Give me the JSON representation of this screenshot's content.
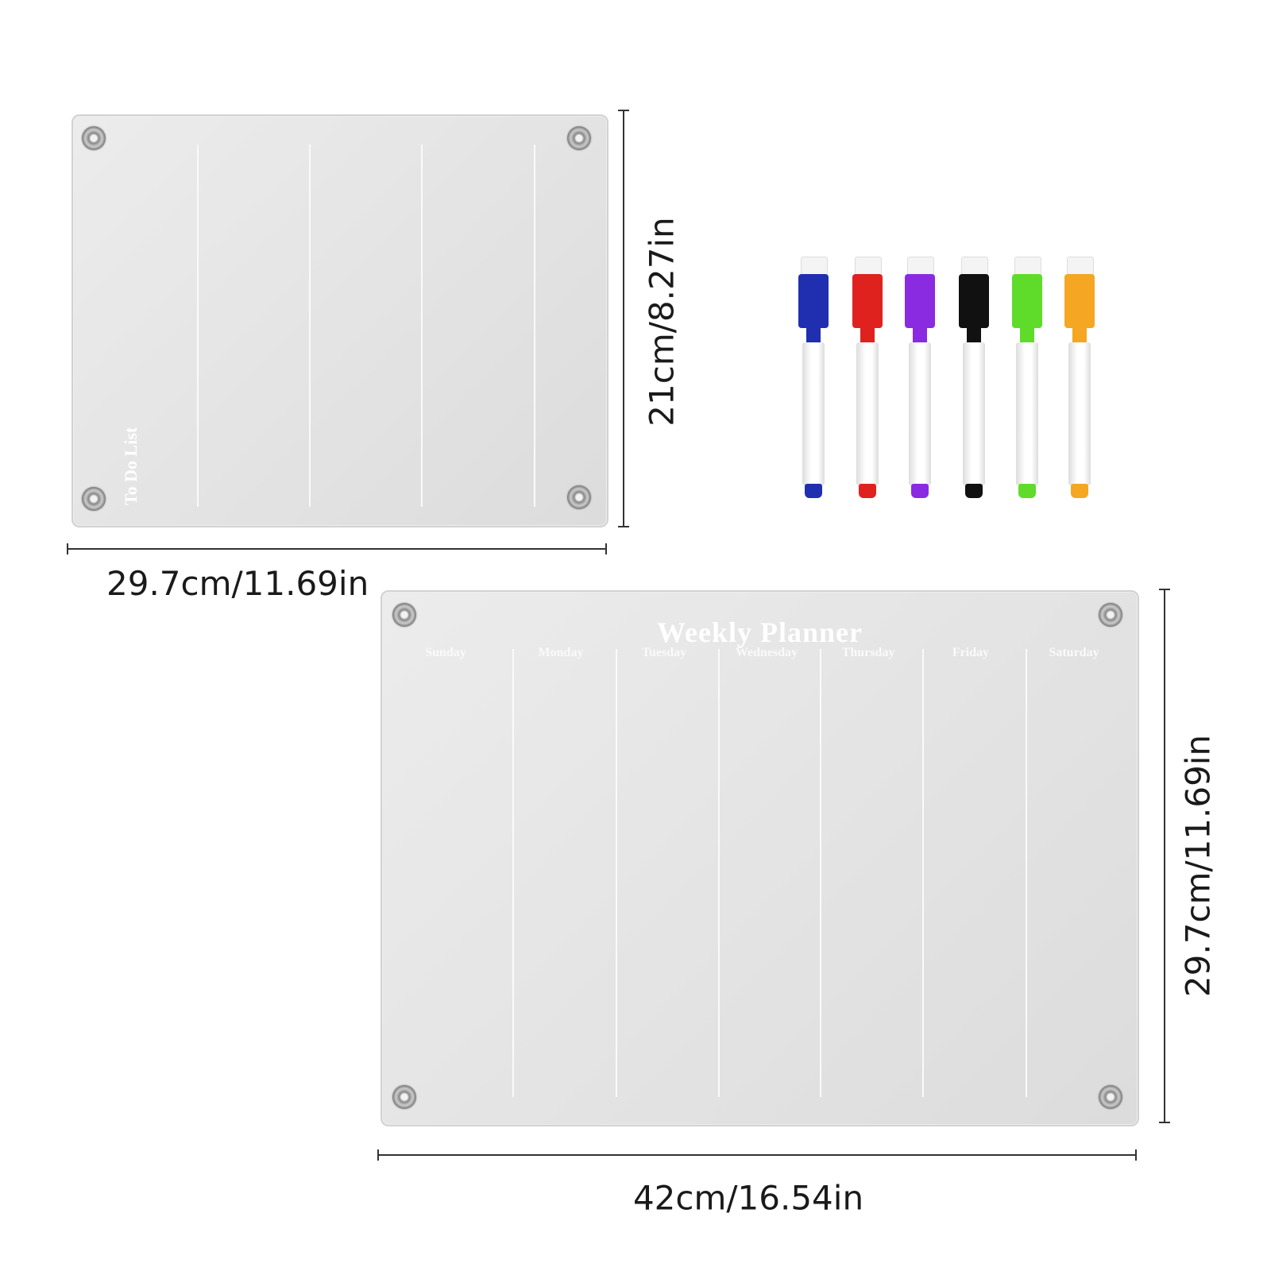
{
  "todo_board": {
    "title": "To Do List"
  },
  "weekly_board": {
    "title": "Weekly Planner",
    "days": [
      "Sunday",
      "Monday",
      "Tuesday",
      "Wednesday",
      "Thursday",
      "Friday",
      "Saturday"
    ]
  },
  "dimensions": {
    "todo_height": "21cm/8.27in",
    "todo_width": "29.7cm/11.69in",
    "weekly_height": "29.7cm/11.69in",
    "weekly_width": "42cm/16.54in"
  },
  "markers": [
    {
      "color_name": "blue",
      "color": "#1f2fb0"
    },
    {
      "color_name": "red",
      "color": "#e0221f"
    },
    {
      "color_name": "purple",
      "color": "#8a2be2"
    },
    {
      "color_name": "black",
      "color": "#111111"
    },
    {
      "color_name": "green",
      "color": "#5fdc2a"
    },
    {
      "color_name": "orange",
      "color": "#f5a623"
    }
  ]
}
